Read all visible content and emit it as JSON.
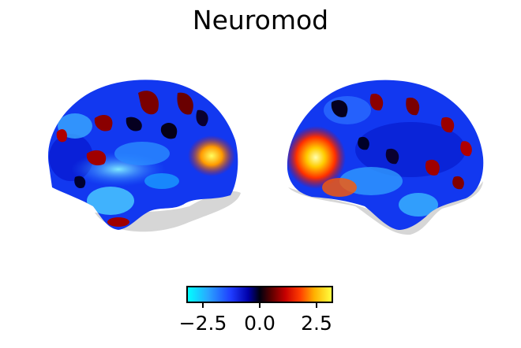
{
  "title": "Neuromod",
  "colorbar": {
    "colormap": "cold_hot",
    "ticks": [
      "−2.5",
      "0.0",
      "2.5"
    ],
    "colors": [
      "#00ffff",
      "#1f3cff",
      "#000010",
      "#c80000",
      "#ffff40"
    ]
  },
  "brain_views": [
    "left-lateral",
    "right-lateral"
  ]
}
